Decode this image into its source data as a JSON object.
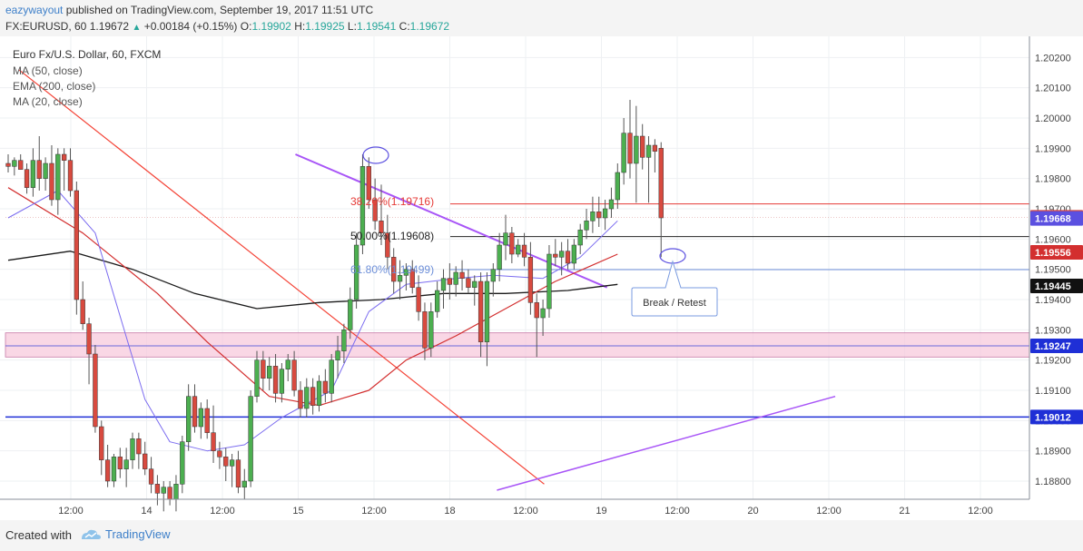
{
  "header": {
    "author": "eazywayout",
    "published_text": "published on TradingView.com, September 19, 2017 11:51 UTC",
    "symbol_line": "FX:EURUSD, 60",
    "last": "1.19672",
    "change": "+0.00184 (+0.15%)",
    "o_label": "O:",
    "o_val": "1.19902",
    "h_label": "H:",
    "h_val": "1.19925",
    "l_label": "L:",
    "l_val": "1.19541",
    "c_label": "C:",
    "c_val": "1.19672"
  },
  "legend": {
    "title": "Euro Fx/U.S. Dollar, 60, FXCM",
    "ma50": "MA (50, close)",
    "ema200": "EMA (200, close)",
    "ma20": "MA (20, close)"
  },
  "annotations": {
    "fib_382": "38.20%(1.19716)",
    "fib_50": "50.00%(1.19608)",
    "fib_618": "61.80%(1.19499)",
    "callout": "Break / Retest"
  },
  "footer": {
    "created_with": "Created with",
    "brand": "TradingView"
  },
  "colors": {
    "bull": "#4caf50",
    "bear": "#d84a3f",
    "ma50": "#d32f2f",
    "ema200": "#1a1a1a",
    "ma20": "#7b6cf0",
    "trend_red": "#f44336",
    "trend_purple": "#a855f7",
    "support_blue": "#1f2fd6",
    "zone": "#f6c6da",
    "fib_382": "#e53935",
    "fib_50": "#222222",
    "fib_618": "#6c8ed8"
  },
  "chart_data": {
    "type": "candlestick",
    "title": "Euro Fx/U.S. Dollar, 60, FXCM",
    "ylim": [
      1.1874,
      1.2027
    ],
    "y_ticks": [
      "1.20200",
      "1.20100",
      "1.20000",
      "1.19900",
      "1.19800",
      "1.19700",
      "1.19600",
      "1.19500",
      "1.19400",
      "1.19300",
      "1.19200",
      "1.19100",
      "1.19000",
      "1.18900",
      "1.18800"
    ],
    "x_ticks": [
      "12:00",
      "14",
      "12:00",
      "15",
      "12:00",
      "18",
      "12:00",
      "19",
      "12:00",
      "20",
      "12:00",
      "21",
      "12:00"
    ],
    "price_tags": [
      {
        "value": "1.19672",
        "color": "#d84a3f"
      },
      {
        "value": "1.19668",
        "color": "#5b50e0"
      },
      {
        "value": "1.19556",
        "color": "#d32f2f"
      },
      {
        "value": "1.19445",
        "color": "#111111"
      },
      {
        "value": "1.19247",
        "color": "#1f2fd6"
      },
      {
        "value": "1.19012",
        "color": "#1f2fd6"
      }
    ],
    "bars": [
      [
        1.1985,
        1.1988,
        1.1982,
        1.1984
      ],
      [
        1.1984,
        1.1987,
        1.1981,
        1.1986
      ],
      [
        1.1986,
        1.1988,
        1.1983,
        1.1983
      ],
      [
        1.1983,
        1.1985,
        1.1975,
        1.1977
      ],
      [
        1.1977,
        1.199,
        1.1974,
        1.1986
      ],
      [
        1.1986,
        1.1994,
        1.1976,
        1.198
      ],
      [
        1.198,
        1.1987,
        1.1976,
        1.1985
      ],
      [
        1.1985,
        1.1991,
        1.1971,
        1.1973
      ],
      [
        1.1973,
        1.199,
        1.1968,
        1.1988
      ],
      [
        1.1988,
        1.199,
        1.1976,
        1.1986
      ],
      [
        1.1986,
        1.199,
        1.1974,
        1.1976
      ],
      [
        1.1976,
        1.1979,
        1.1935,
        1.194
      ],
      [
        1.194,
        1.1946,
        1.193,
        1.1932
      ],
      [
        1.1932,
        1.1934,
        1.1912,
        1.1922
      ],
      [
        1.1922,
        1.1925,
        1.1896,
        1.1898
      ],
      [
        1.1898,
        1.19,
        1.1882,
        1.1887
      ],
      [
        1.1887,
        1.1892,
        1.1878,
        1.188
      ],
      [
        1.188,
        1.1889,
        1.1878,
        1.1888
      ],
      [
        1.1888,
        1.1891,
        1.1881,
        1.1884
      ],
      [
        1.1884,
        1.1891,
        1.1878,
        1.1887
      ],
      [
        1.1887,
        1.1896,
        1.1884,
        1.1894
      ],
      [
        1.1894,
        1.1896,
        1.1884,
        1.1889
      ],
      [
        1.1889,
        1.1893,
        1.1882,
        1.1884
      ],
      [
        1.1884,
        1.1888,
        1.1876,
        1.1879
      ],
      [
        1.1879,
        1.1882,
        1.1872,
        1.1876
      ],
      [
        1.1876,
        1.188,
        1.187,
        1.1878
      ],
      [
        1.1878,
        1.188,
        1.1872,
        1.1874
      ],
      [
        1.1874,
        1.1882,
        1.187,
        1.1879
      ],
      [
        1.1879,
        1.1895,
        1.1876,
        1.1893
      ],
      [
        1.1893,
        1.1912,
        1.189,
        1.1908
      ],
      [
        1.1908,
        1.1912,
        1.1896,
        1.1898
      ],
      [
        1.1898,
        1.1906,
        1.1894,
        1.1904
      ],
      [
        1.1904,
        1.1907,
        1.1894,
        1.1896
      ],
      [
        1.1896,
        1.1905,
        1.1886,
        1.189
      ],
      [
        1.189,
        1.1893,
        1.1884,
        1.1888
      ],
      [
        1.1888,
        1.1891,
        1.188,
        1.1885
      ],
      [
        1.1885,
        1.1889,
        1.1878,
        1.1887
      ],
      [
        1.1887,
        1.189,
        1.1876,
        1.1878
      ],
      [
        1.1878,
        1.1884,
        1.1874,
        1.188
      ],
      [
        1.188,
        1.191,
        1.1878,
        1.1908
      ],
      [
        1.1908,
        1.1923,
        1.1906,
        1.192
      ],
      [
        1.192,
        1.1923,
        1.191,
        1.1914
      ],
      [
        1.1914,
        1.1921,
        1.191,
        1.1918
      ],
      [
        1.1918,
        1.1922,
        1.1906,
        1.1909
      ],
      [
        1.1909,
        1.1919,
        1.1906,
        1.1917
      ],
      [
        1.1917,
        1.1922,
        1.1913,
        1.192
      ],
      [
        1.192,
        1.1923,
        1.1908,
        1.191
      ],
      [
        1.191,
        1.1913,
        1.1901,
        1.1904
      ],
      [
        1.1904,
        1.1914,
        1.1901,
        1.1911
      ],
      [
        1.1911,
        1.1914,
        1.1902,
        1.1905
      ],
      [
        1.1905,
        1.1915,
        1.1903,
        1.1913
      ],
      [
        1.1913,
        1.1917,
        1.1906,
        1.1909
      ],
      [
        1.1909,
        1.1922,
        1.1906,
        1.192
      ],
      [
        1.192,
        1.1928,
        1.1914,
        1.1923
      ],
      [
        1.1923,
        1.1932,
        1.1919,
        1.193
      ],
      [
        1.193,
        1.1944,
        1.1927,
        1.194
      ],
      [
        1.194,
        1.1962,
        1.1937,
        1.1958
      ],
      [
        1.1958,
        1.1988,
        1.1955,
        1.1984
      ],
      [
        1.1984,
        1.1987,
        1.197,
        1.1973
      ],
      [
        1.1973,
        1.198,
        1.1963,
        1.1966
      ],
      [
        1.1966,
        1.1978,
        1.1958,
        1.1962
      ],
      [
        1.1962,
        1.1968,
        1.195,
        1.1954
      ],
      [
        1.1954,
        1.1957,
        1.1942,
        1.1946
      ],
      [
        1.1946,
        1.1953,
        1.194,
        1.1948
      ],
      [
        1.1948,
        1.1952,
        1.1943,
        1.195
      ],
      [
        1.195,
        1.1953,
        1.1942,
        1.1944
      ],
      [
        1.1944,
        1.1948,
        1.1933,
        1.1936
      ],
      [
        1.1936,
        1.1939,
        1.192,
        1.1924
      ],
      [
        1.1924,
        1.1939,
        1.1921,
        1.1936
      ],
      [
        1.1936,
        1.1946,
        1.1934,
        1.1943
      ],
      [
        1.1943,
        1.195,
        1.1937,
        1.1947
      ],
      [
        1.1947,
        1.1952,
        1.194,
        1.1945
      ],
      [
        1.1945,
        1.1951,
        1.1941,
        1.1949
      ],
      [
        1.1949,
        1.1953,
        1.1943,
        1.1947
      ],
      [
        1.1947,
        1.195,
        1.1942,
        1.1944
      ],
      [
        1.1944,
        1.1948,
        1.1938,
        1.1946
      ],
      [
        1.1946,
        1.1949,
        1.1921,
        1.1926
      ],
      [
        1.1926,
        1.1949,
        1.1918,
        1.1946
      ],
      [
        1.1946,
        1.1952,
        1.1941,
        1.195
      ],
      [
        1.195,
        1.1962,
        1.1946,
        1.1958
      ],
      [
        1.1958,
        1.1968,
        1.1953,
        1.1962
      ],
      [
        1.1962,
        1.1964,
        1.1952,
        1.1955
      ],
      [
        1.1955,
        1.196,
        1.1954,
        1.1958
      ],
      [
        1.1958,
        1.1962,
        1.1951,
        1.1954
      ],
      [
        1.1954,
        1.1959,
        1.1935,
        1.1939
      ],
      [
        1.1939,
        1.1942,
        1.1921,
        1.1934
      ],
      [
        1.1934,
        1.194,
        1.1928,
        1.1937
      ],
      [
        1.1937,
        1.1958,
        1.1934,
        1.1955
      ],
      [
        1.1955,
        1.196,
        1.1951,
        1.1954
      ],
      [
        1.1954,
        1.1959,
        1.1948,
        1.1956
      ],
      [
        1.1956,
        1.196,
        1.195,
        1.1952
      ],
      [
        1.1952,
        1.196,
        1.195,
        1.1958
      ],
      [
        1.1958,
        1.1965,
        1.1955,
        1.1963
      ],
      [
        1.1963,
        1.197,
        1.196,
        1.1966
      ],
      [
        1.1966,
        1.1974,
        1.1962,
        1.1969
      ],
      [
        1.1969,
        1.1974,
        1.1964,
        1.1967
      ],
      [
        1.1967,
        1.1973,
        1.1963,
        1.197
      ],
      [
        1.197,
        1.1977,
        1.1967,
        1.1973
      ],
      [
        1.1973,
        1.1985,
        1.197,
        1.1982
      ],
      [
        1.1982,
        1.2,
        1.1978,
        1.1995
      ],
      [
        1.1995,
        1.2006,
        1.198,
        1.1985
      ],
      [
        1.1985,
        1.2004,
        1.1972,
        1.1994
      ],
      [
        1.1994,
        1.1998,
        1.1983,
        1.1987
      ],
      [
        1.1987,
        1.1994,
        1.1972,
        1.1991
      ],
      [
        1.1991,
        1.1993,
        1.1982,
        1.1989
      ],
      [
        1.199,
        1.1992,
        1.1954,
        1.1967
      ]
    ],
    "ma20": [
      [
        0,
        1.1967
      ],
      [
        8,
        1.1976
      ],
      [
        14,
        1.1962
      ],
      [
        22,
        1.1907
      ],
      [
        26,
        1.1893
      ],
      [
        32,
        1.189
      ],
      [
        38,
        1.1892
      ],
      [
        44,
        1.1901
      ],
      [
        52,
        1.191
      ],
      [
        58,
        1.1936
      ],
      [
        64,
        1.1945
      ],
      [
        72,
        1.1947
      ],
      [
        78,
        1.1948
      ],
      [
        86,
        1.1947
      ],
      [
        92,
        1.1954
      ],
      [
        98,
        1.1966
      ]
    ],
    "ma50": [
      [
        0,
        1.1977
      ],
      [
        12,
        1.1962
      ],
      [
        24,
        1.1942
      ],
      [
        32,
        1.1926
      ],
      [
        42,
        1.1908
      ],
      [
        50,
        1.1905
      ],
      [
        58,
        1.191
      ],
      [
        64,
        1.192
      ],
      [
        72,
        1.1928
      ],
      [
        80,
        1.1937
      ],
      [
        88,
        1.1946
      ],
      [
        98,
        1.1955
      ]
    ],
    "ema200": [
      [
        0,
        1.1953
      ],
      [
        10,
        1.1956
      ],
      [
        20,
        1.195
      ],
      [
        30,
        1.1942
      ],
      [
        40,
        1.1937
      ],
      [
        50,
        1.1939
      ],
      [
        60,
        1.194
      ],
      [
        70,
        1.1942
      ],
      [
        80,
        1.1942
      ],
      [
        90,
        1.1943
      ],
      [
        98,
        1.1945
      ]
    ],
    "trend_red": [
      [
        1.7,
        1.2016
      ],
      [
        86.2,
        1.1879
      ]
    ],
    "trend_purple_down": [
      [
        46.2,
        1.1988
      ],
      [
        96.3,
        1.1944
      ]
    ],
    "trend_purple_up": [
      [
        78.6,
        1.1877
      ],
      [
        133,
        1.1908
      ]
    ],
    "support_zone": [
      1.1921,
      1.1929
    ],
    "zone_center": 1.19247,
    "support_line": 1.19012,
    "fib_levels": [
      1.19716,
      1.19608,
      1.19499
    ]
  }
}
